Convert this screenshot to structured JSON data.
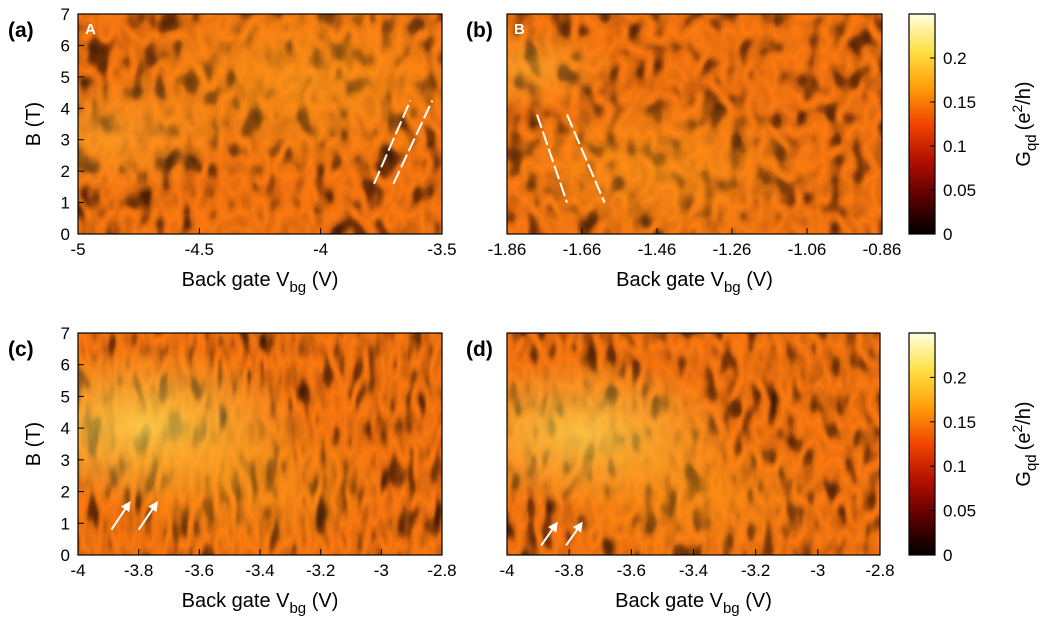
{
  "colorbar_ticks": [
    "0",
    "0.05",
    "0.1",
    "0.15",
    "0.2"
  ],
  "colorbar_label": "G",
  "colorbar_label_sub": "qd",
  "colorbar_label_unit_pre": "(e",
  "colorbar_label_sup": "2",
  "colorbar_label_unit_post": "/h)",
  "colormap": [
    "#000000",
    "#5a0000",
    "#b20f00",
    "#f04500",
    "#ff9e0a",
    "#ffe045",
    "#ffffe0"
  ],
  "annotation_color": "#ffffff",
  "chart_data": [
    {
      "type": "heatmap",
      "panel": "(a)",
      "inset": "A",
      "xlabel": "Back gate V",
      "xlabel_sub": "bg",
      "xlabel_unit": " (V)",
      "ylabel": "B (T)",
      "xlim": [
        -5,
        -3.5
      ],
      "ylim": [
        0,
        7
      ],
      "xticks": [
        "-5",
        "-4.5",
        "-4",
        "-3.5"
      ],
      "yticks": [
        "0",
        "1",
        "2",
        "3",
        "4",
        "5",
        "6",
        "7"
      ],
      "zlim": [
        0,
        0.25
      ],
      "annotations": [
        {
          "kind": "dashed-line",
          "from": [
            -3.78,
            1.6
          ],
          "to": [
            -3.63,
            4.25
          ]
        },
        {
          "kind": "dashed-line",
          "from": [
            -3.7,
            1.6
          ],
          "to": [
            -3.54,
            4.25
          ]
        }
      ]
    },
    {
      "type": "heatmap",
      "panel": "(b)",
      "inset": "B",
      "xlabel": "Back gate V",
      "xlabel_sub": "bg",
      "xlabel_unit": " (V)",
      "ylabel": "",
      "xlim": [
        -1.86,
        -0.86
      ],
      "ylim": [
        0,
        7
      ],
      "xticks": [
        "-1.86",
        "-1.66",
        "-1.46",
        "-1.26",
        "-1.06",
        "-0.86"
      ],
      "yticks": [],
      "zlim": [
        0,
        0.25
      ],
      "annotations": [
        {
          "kind": "dashed-line",
          "from": [
            -1.78,
            3.8
          ],
          "to": [
            -1.7,
            1.0
          ]
        },
        {
          "kind": "dashed-line",
          "from": [
            -1.7,
            3.8
          ],
          "to": [
            -1.6,
            1.0
          ]
        }
      ]
    },
    {
      "type": "heatmap",
      "panel": "(c)",
      "inset": "",
      "xlabel": "Back gate V",
      "xlabel_sub": "bg",
      "xlabel_unit": " (V)",
      "ylabel": "B (T)",
      "xlim": [
        -4,
        -2.8
      ],
      "ylim": [
        0,
        7
      ],
      "xticks": [
        "-4",
        "-3.8",
        "-3.6",
        "-3.4",
        "-3.2",
        "-3",
        "-2.8"
      ],
      "yticks": [
        "0",
        "1",
        "2",
        "3",
        "4",
        "5",
        "6",
        "7"
      ],
      "zlim": [
        0,
        0.25
      ],
      "annotations": [
        {
          "kind": "arrow",
          "from": [
            -3.89,
            0.8
          ],
          "to": [
            -3.83,
            1.65
          ]
        },
        {
          "kind": "arrow",
          "from": [
            -3.8,
            0.8
          ],
          "to": [
            -3.74,
            1.65
          ]
        }
      ]
    },
    {
      "type": "heatmap",
      "panel": "(d)",
      "inset": "",
      "xlabel": "Back gate V",
      "xlabel_sub": "bg",
      "xlabel_unit": " (V)",
      "ylabel": "",
      "xlim": [
        -4,
        -2.8
      ],
      "ylim": [
        0,
        7
      ],
      "xticks": [
        "-4",
        "-3.8",
        "-3.6",
        "-3.4",
        "-3.2",
        "-3",
        "-2.8"
      ],
      "yticks": [],
      "zlim": [
        0,
        0.25
      ],
      "annotations": [
        {
          "kind": "arrow",
          "from": [
            -3.89,
            0.3
          ],
          "to": [
            -3.84,
            1.0
          ]
        },
        {
          "kind": "arrow",
          "from": [
            -3.81,
            0.3
          ],
          "to": [
            -3.76,
            1.0
          ]
        }
      ]
    }
  ]
}
